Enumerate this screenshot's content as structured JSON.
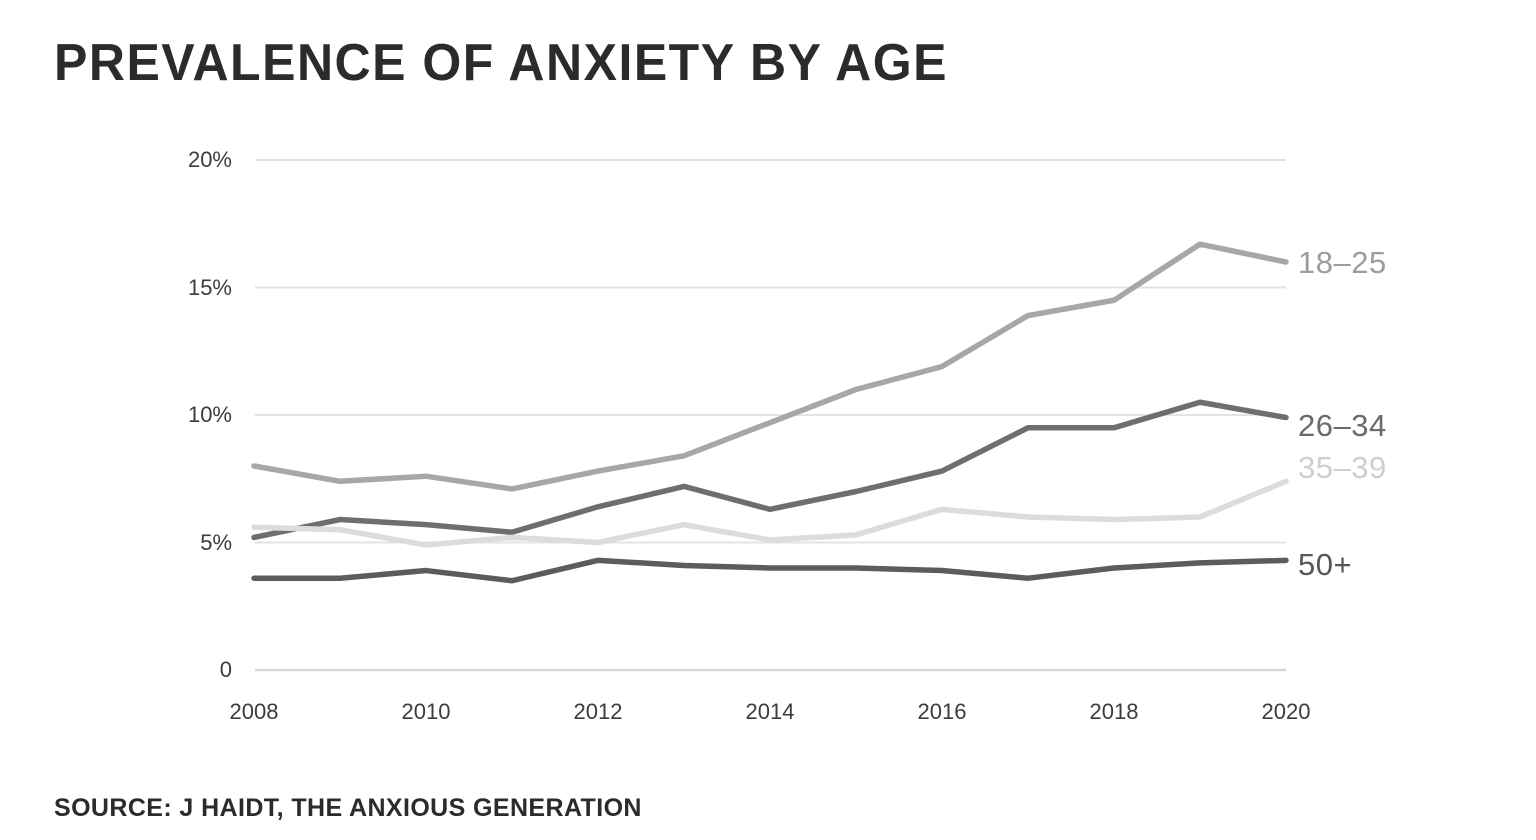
{
  "page": {
    "background": "#ffffff"
  },
  "title": "PREVALENCE OF ANXIETY BY AGE",
  "source": "SOURCE: J HAIDT, THE ANXIOUS GENERATION",
  "colors": {
    "title_text": "#2b2b2b",
    "axis_text": "#3c3c3c",
    "gridline": "#e3e3e3",
    "zero_line": "#d8d8d8"
  },
  "chart_data": {
    "type": "line",
    "title": "PREVALENCE OF ANXIETY BY AGE",
    "xlabel": "",
    "ylabel": "",
    "unit": "%",
    "ylim": [
      0,
      20
    ],
    "grid": "horizontal",
    "legend_position": "right-end-labels",
    "x": [
      2008,
      2009,
      2010,
      2011,
      2012,
      2013,
      2014,
      2015,
      2016,
      2017,
      2018,
      2019,
      2020
    ],
    "x_tick_labels": [
      "2008",
      "2010",
      "2012",
      "2014",
      "2016",
      "2018",
      "2020"
    ],
    "y_ticks": [
      {
        "value": 20,
        "label": "20%"
      },
      {
        "value": 15,
        "label": "15%"
      },
      {
        "value": 10,
        "label": "10%"
      },
      {
        "value": 5,
        "label": "5%"
      },
      {
        "value": 0,
        "label": "0"
      }
    ],
    "series": [
      {
        "name": "18–25",
        "color": "#a7a7a7",
        "label_color": "#9c9c9c",
        "values": [
          8.0,
          7.4,
          7.6,
          7.1,
          7.8,
          8.4,
          9.7,
          11.0,
          11.9,
          13.9,
          14.5,
          16.7,
          16.0
        ]
      },
      {
        "name": "26–34",
        "color": "#6e6e6e",
        "label_color": "#6a6a6a",
        "values": [
          5.2,
          5.9,
          5.7,
          5.4,
          6.4,
          7.2,
          6.3,
          7.0,
          7.8,
          9.5,
          9.5,
          10.5,
          9.9
        ]
      },
      {
        "name": "35–39",
        "color": "#dcdcdc",
        "label_color": "#cfcfcf",
        "values": [
          5.6,
          5.5,
          4.9,
          5.2,
          5.0,
          5.7,
          5.1,
          5.3,
          6.3,
          6.0,
          5.9,
          6.0,
          7.4
        ]
      },
      {
        "name": "50+",
        "color": "#5c5c5c",
        "label_color": "#575757",
        "values": [
          3.6,
          3.6,
          3.9,
          3.5,
          4.3,
          4.1,
          4.0,
          4.0,
          3.9,
          3.6,
          4.0,
          4.2,
          4.3
        ]
      }
    ]
  }
}
